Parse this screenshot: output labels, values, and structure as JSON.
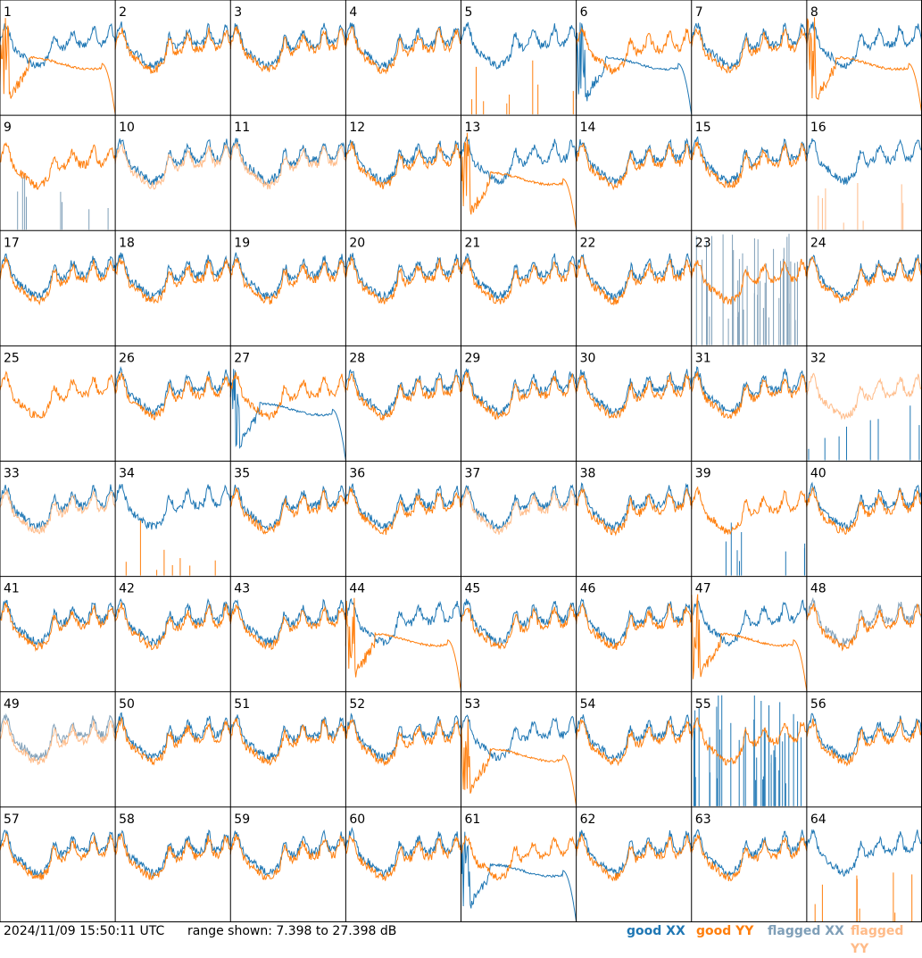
{
  "colors": {
    "good_xx": "#1f77b4",
    "good_yy": "#ff7f0e",
    "flagged_xx": "#7f9fb8",
    "flagged_yy": "#ffbb88",
    "grid": "#000000",
    "background": "#ffffff"
  },
  "footer": {
    "timestamp": "2024/11/09 15:50:11 UTC",
    "range_text": "range shown: 7.398 to 27.398 dB",
    "legend": {
      "good_xx": "good XX",
      "good_yy": "good YY",
      "flagged_xx": "flagged XX",
      "flagged_yy": "flagged YY"
    }
  },
  "chart_data": {
    "type": "line",
    "layout": "8x8 small multiples",
    "ylim": [
      7.398,
      27.398
    ],
    "yunit": "dB",
    "panels": [
      {
        "id": 1,
        "xx": "normal",
        "yy": "decay"
      },
      {
        "id": 2,
        "xx": "normal",
        "yy": "normal"
      },
      {
        "id": 3,
        "xx": "normal",
        "yy": "normal"
      },
      {
        "id": 4,
        "xx": "normal",
        "yy": "normal"
      },
      {
        "id": 5,
        "xx": "normal",
        "yy": "spikes"
      },
      {
        "id": 6,
        "xx": "decay",
        "yy": "normal"
      },
      {
        "id": 7,
        "xx": "normal",
        "yy": "normal"
      },
      {
        "id": 8,
        "xx": "normal",
        "yy": "decay"
      },
      {
        "id": 9,
        "xx": "flagged_spikes",
        "yy": "normal"
      },
      {
        "id": 10,
        "xx": "normal",
        "yy": "flagged_normal"
      },
      {
        "id": 11,
        "xx": "normal",
        "yy": "flagged_normal"
      },
      {
        "id": 12,
        "xx": "normal",
        "yy": "normal"
      },
      {
        "id": 13,
        "xx": "normal",
        "yy": "decay"
      },
      {
        "id": 14,
        "xx": "normal",
        "yy": "normal"
      },
      {
        "id": 15,
        "xx": "normal",
        "yy": "normal"
      },
      {
        "id": 16,
        "xx": "normal",
        "yy": "flagged_spikes"
      },
      {
        "id": 17,
        "xx": "normal",
        "yy": "normal"
      },
      {
        "id": 18,
        "xx": "normal",
        "yy": "normal"
      },
      {
        "id": 19,
        "xx": "normal",
        "yy": "normal"
      },
      {
        "id": 20,
        "xx": "normal",
        "yy": "normal"
      },
      {
        "id": 21,
        "xx": "normal",
        "yy": "normal"
      },
      {
        "id": 22,
        "xx": "normal",
        "yy": "normal"
      },
      {
        "id": 23,
        "xx": "flagged_spikes",
        "yy": "normal"
      },
      {
        "id": 24,
        "xx": "normal",
        "yy": "normal"
      },
      {
        "id": 25,
        "xx": "none",
        "yy": "normal"
      },
      {
        "id": 26,
        "xx": "normal",
        "yy": "normal"
      },
      {
        "id": 27,
        "xx": "decay",
        "yy": "normal"
      },
      {
        "id": 28,
        "xx": "normal",
        "yy": "normal"
      },
      {
        "id": 29,
        "xx": "normal",
        "yy": "normal"
      },
      {
        "id": 30,
        "xx": "normal",
        "yy": "normal"
      },
      {
        "id": 31,
        "xx": "normal",
        "yy": "normal"
      },
      {
        "id": 32,
        "xx": "spikes",
        "yy": "flagged_normal"
      },
      {
        "id": 33,
        "xx": "normal",
        "yy": "flagged_normal"
      },
      {
        "id": 34,
        "xx": "normal",
        "yy": "spikes"
      },
      {
        "id": 35,
        "xx": "normal",
        "yy": "normal"
      },
      {
        "id": 36,
        "xx": "normal",
        "yy": "normal"
      },
      {
        "id": 37,
        "xx": "normal",
        "yy": "flagged_normal"
      },
      {
        "id": 38,
        "xx": "normal",
        "yy": "normal"
      },
      {
        "id": 39,
        "xx": "spikes",
        "yy": "normal"
      },
      {
        "id": 40,
        "xx": "normal",
        "yy": "normal"
      },
      {
        "id": 41,
        "xx": "normal",
        "yy": "normal"
      },
      {
        "id": 42,
        "xx": "normal",
        "yy": "normal"
      },
      {
        "id": 43,
        "xx": "normal",
        "yy": "normal"
      },
      {
        "id": 44,
        "xx": "normal",
        "yy": "decay"
      },
      {
        "id": 45,
        "xx": "normal",
        "yy": "normal"
      },
      {
        "id": 46,
        "xx": "normal",
        "yy": "normal"
      },
      {
        "id": 47,
        "xx": "normal",
        "yy": "decay"
      },
      {
        "id": 48,
        "xx": "flagged_normal",
        "yy": "normal"
      },
      {
        "id": 49,
        "xx": "flagged_normal",
        "yy": "flagged_normal"
      },
      {
        "id": 50,
        "xx": "normal",
        "yy": "normal"
      },
      {
        "id": 51,
        "xx": "normal",
        "yy": "normal"
      },
      {
        "id": 52,
        "xx": "normal",
        "yy": "normal"
      },
      {
        "id": 53,
        "xx": "normal",
        "yy": "decay"
      },
      {
        "id": 54,
        "xx": "normal",
        "yy": "normal"
      },
      {
        "id": 55,
        "xx": "spikes",
        "yy": "normal"
      },
      {
        "id": 56,
        "xx": "normal",
        "yy": "normal"
      },
      {
        "id": 57,
        "xx": "normal",
        "yy": "normal"
      },
      {
        "id": 58,
        "xx": "normal",
        "yy": "normal"
      },
      {
        "id": 59,
        "xx": "normal",
        "yy": "normal"
      },
      {
        "id": 60,
        "xx": "normal",
        "yy": "normal"
      },
      {
        "id": 61,
        "xx": "decay",
        "yy": "normal"
      },
      {
        "id": 62,
        "xx": "normal",
        "yy": "normal"
      },
      {
        "id": 63,
        "xx": "normal",
        "yy": "normal"
      },
      {
        "id": 64,
        "xx": "normal",
        "yy": "spikes"
      }
    ]
  }
}
